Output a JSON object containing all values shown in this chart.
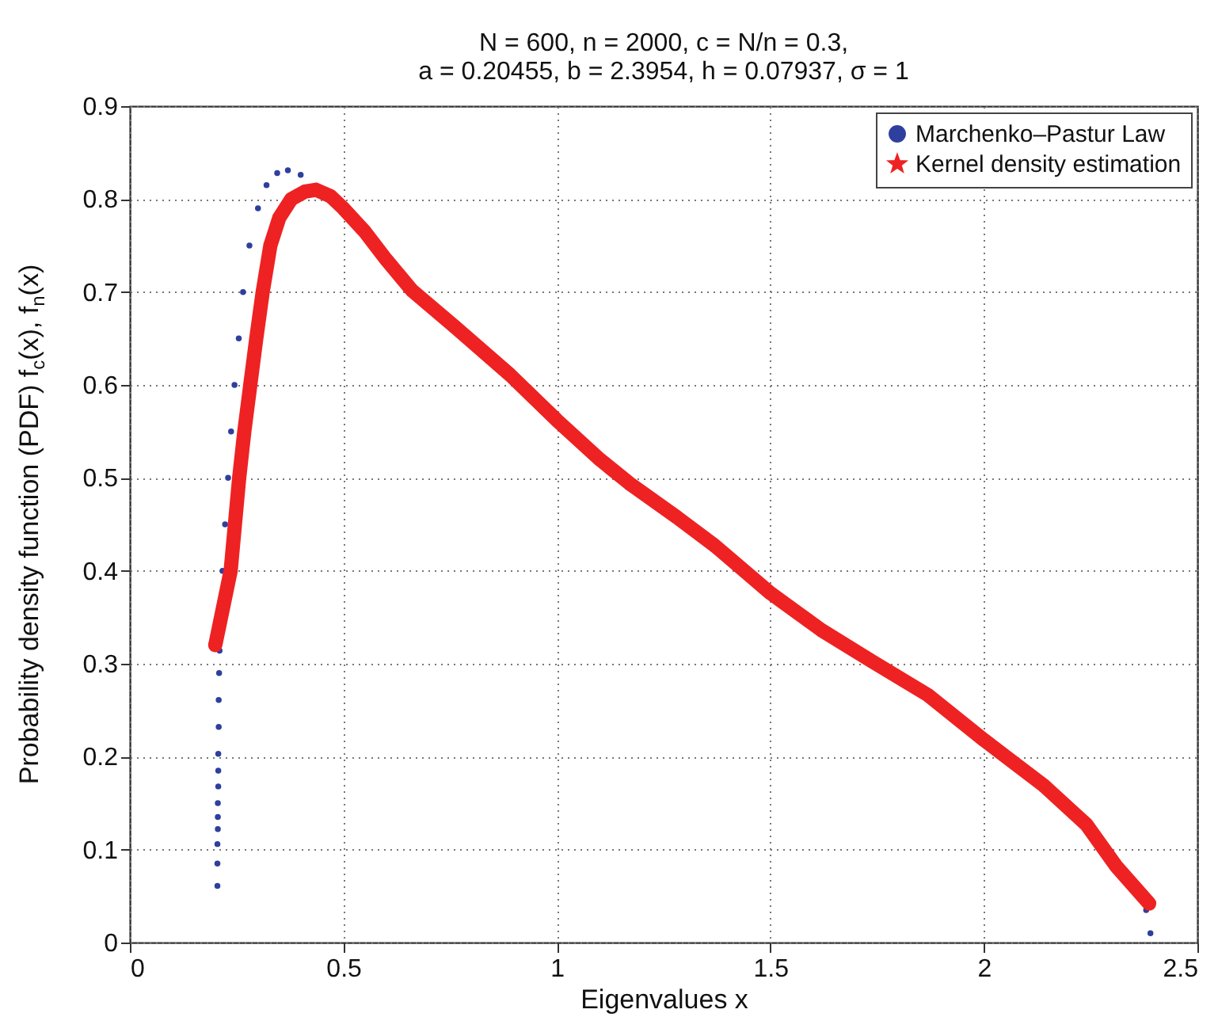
{
  "chart_data": {
    "type": "line",
    "title": "N = 600, n = 2000, c = N/n = 0.3, a = 0.20455, b = 2.3954, h = 0.07937, σ = 1",
    "xlabel": "Eigenvalues x",
    "ylabel": "Probability density function (PDF) f$_{c}$(x), f$_{n}$(x)",
    "xlim": [
      0,
      2.5
    ],
    "xticks": [
      0,
      0.5,
      1,
      1.5,
      2,
      2.5
    ],
    "ylim": [
      0,
      0.9
    ],
    "yticks": [
      0,
      0.1,
      0.2,
      0.3,
      0.4,
      0.5,
      0.6,
      0.7,
      0.8,
      0.9
    ],
    "grid": true,
    "legend": "top right",
    "line_style": "solid",
    "series": [
      {
        "name": "Marchenko–Pastur Law",
        "type": "scatter",
        "marker": "circle",
        "color": "#2e3f9e",
        "x": [
          0.205,
          0.205,
          0.205,
          0.206,
          0.206,
          0.206,
          0.207,
          0.207,
          0.207,
          0.208,
          0.208,
          0.209,
          0.21,
          0.212,
          0.217,
          0.223,
          0.23,
          0.237,
          0.245,
          0.255,
          0.265,
          0.28,
          0.3,
          0.32,
          0.345,
          0.37,
          0.4,
          0.43,
          0.46,
          0.5,
          0.55,
          0.6,
          0.66,
          0.76,
          0.89,
          1.0,
          1.1,
          1.17,
          1.28,
          1.37,
          1.5,
          1.62,
          1.74,
          1.87,
          2.0,
          2.14,
          2.24,
          2.31,
          2.35,
          2.38,
          2.39
        ],
        "values": [
          0.061,
          0.085,
          0.106,
          0.122,
          0.135,
          0.15,
          0.168,
          0.185,
          0.203,
          0.232,
          0.261,
          0.29,
          0.314,
          null,
          0.4,
          0.45,
          0.5,
          0.55,
          0.6,
          0.65,
          0.7,
          0.75,
          0.79,
          0.815,
          0.828,
          0.831,
          0.826,
          null,
          null,
          null,
          null,
          null,
          null,
          null,
          null,
          null,
          null,
          null,
          null,
          null,
          null,
          null,
          null,
          null,
          null,
          null,
          null,
          null,
          null,
          0.035,
          0.01
        ]
      },
      {
        "name": "Kernel density estimation",
        "marker": "star",
        "color": "#ee2222",
        "x": [
          0.2,
          0.218,
          0.236,
          0.256,
          0.268,
          0.282,
          0.296,
          0.311,
          0.329,
          0.35,
          0.378,
          0.41,
          0.436,
          0.47,
          0.5,
          0.55,
          0.6,
          0.66,
          0.76,
          0.89,
          1.0,
          1.1,
          1.17,
          1.28,
          1.37,
          1.5,
          1.62,
          1.74,
          1.87,
          2.0,
          2.14,
          2.24,
          2.31,
          2.387
        ],
        "values": [
          0.32,
          0.36,
          0.4,
          0.5,
          0.55,
          0.6,
          0.65,
          0.7,
          0.75,
          0.78,
          0.8,
          0.808,
          0.81,
          0.803,
          0.79,
          0.765,
          0.735,
          0.702,
          0.663,
          0.611,
          0.562,
          0.52,
          0.494,
          0.458,
          0.427,
          0.376,
          0.336,
          0.302,
          0.266,
          0.218,
          0.169,
          0.127,
          0.082,
          0.042
        ]
      }
    ]
  }
}
